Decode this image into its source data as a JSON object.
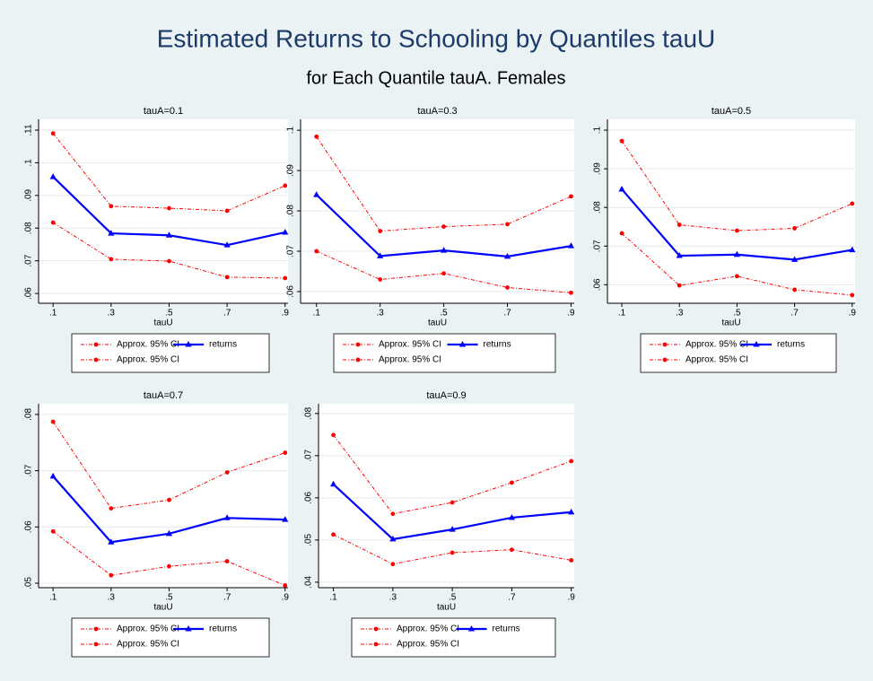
{
  "title": "Estimated Returns to Schooling by Quantiles tauU",
  "subtitle": "for Each Quantile tauA. Females",
  "chart_data": [
    {
      "type": "line",
      "title": "tauA=0.1",
      "xlabel": "tauU",
      "x": [
        0.1,
        0.3,
        0.5,
        0.7,
        0.9
      ],
      "xlim": [
        0.05,
        0.91
      ],
      "xticks": [
        {
          "value": 0.1,
          "label": ".1"
        },
        {
          "value": 0.3,
          "label": ".3"
        },
        {
          "value": 0.5,
          "label": ".5"
        },
        {
          "value": 0.7,
          "label": ".7"
        },
        {
          "value": 0.9,
          "label": ".9"
        }
      ],
      "ylim": [
        0.057,
        0.1133
      ],
      "yticks": [
        {
          "value": 0.06,
          "label": ".06"
        },
        {
          "value": 0.07,
          "label": ".07"
        },
        {
          "value": 0.08,
          "label": ".08"
        },
        {
          "value": 0.09,
          "label": ".09"
        },
        {
          "value": 0.1,
          "label": ".1"
        },
        {
          "value": 0.11,
          "label": ".11"
        }
      ],
      "grid": true,
      "series": [
        {
          "name": "Approx. 95% CI",
          "color": "#ff0000",
          "dashed": true,
          "marker": "circle",
          "values": [
            0.109,
            0.0867,
            0.0861,
            0.0853,
            0.093
          ]
        },
        {
          "name": "returns",
          "color": "#0000ff",
          "dashed": false,
          "marker": "triangle",
          "values": [
            0.0957,
            0.0784,
            0.0778,
            0.0748,
            0.0787
          ]
        },
        {
          "name": "Approx. 95% CI",
          "color": "#ff0000",
          "dashed": true,
          "marker": "circle",
          "values": [
            0.0817,
            0.0705,
            0.0699,
            0.065,
            0.0647
          ]
        }
      ]
    },
    {
      "type": "line",
      "title": "tauA=0.3",
      "xlabel": "tauU",
      "x": [
        0.1,
        0.3,
        0.5,
        0.7,
        0.9
      ],
      "xlim": [
        0.05,
        0.91
      ],
      "xticks": [
        {
          "value": 0.1,
          "label": ".1"
        },
        {
          "value": 0.3,
          "label": ".3"
        },
        {
          "value": 0.5,
          "label": ".5"
        },
        {
          "value": 0.7,
          "label": ".7"
        },
        {
          "value": 0.9,
          "label": ".9"
        }
      ],
      "ylim": [
        0.0571,
        0.1027
      ],
      "yticks": [
        {
          "value": 0.06,
          "label": ".06"
        },
        {
          "value": 0.07,
          "label": ".07"
        },
        {
          "value": 0.08,
          "label": ".08"
        },
        {
          "value": 0.09,
          "label": ".09"
        },
        {
          "value": 0.1,
          "label": ".1"
        }
      ],
      "grid": true,
      "series": [
        {
          "name": "Approx. 95% CI",
          "color": "#ff0000",
          "dashed": true,
          "marker": "circle",
          "values": [
            0.0984,
            0.075,
            0.0761,
            0.0767,
            0.0836
          ]
        },
        {
          "name": "returns",
          "color": "#0000ff",
          "dashed": false,
          "marker": "triangle",
          "values": [
            0.084,
            0.0688,
            0.0702,
            0.0687,
            0.0713
          ]
        },
        {
          "name": "Approx. 95% CI",
          "color": "#ff0000",
          "dashed": true,
          "marker": "circle",
          "values": [
            0.07,
            0.063,
            0.0645,
            0.061,
            0.0597
          ]
        }
      ]
    },
    {
      "type": "line",
      "title": "tauA=0.5",
      "xlabel": "tauU",
      "x": [
        0.1,
        0.3,
        0.5,
        0.7,
        0.9
      ],
      "xlim": [
        0.05,
        0.91
      ],
      "xticks": [
        {
          "value": 0.1,
          "label": ".1"
        },
        {
          "value": 0.3,
          "label": ".3"
        },
        {
          "value": 0.5,
          "label": ".5"
        },
        {
          "value": 0.7,
          "label": ".7"
        },
        {
          "value": 0.9,
          "label": ".9"
        }
      ],
      "ylim": [
        0.0552,
        0.1028
      ],
      "yticks": [
        {
          "value": 0.06,
          "label": ".06"
        },
        {
          "value": 0.07,
          "label": ".07"
        },
        {
          "value": 0.08,
          "label": ".08"
        },
        {
          "value": 0.09,
          "label": ".09"
        },
        {
          "value": 0.1,
          "label": ".1"
        }
      ],
      "grid": true,
      "series": [
        {
          "name": "Approx. 95% CI",
          "color": "#ff0000",
          "dashed": true,
          "marker": "circle",
          "values": [
            0.0972,
            0.0755,
            0.074,
            0.0746,
            0.081
          ]
        },
        {
          "name": "returns",
          "color": "#0000ff",
          "dashed": false,
          "marker": "triangle",
          "values": [
            0.0847,
            0.0675,
            0.0678,
            0.0665,
            0.069
          ]
        },
        {
          "name": "Approx. 95% CI",
          "color": "#ff0000",
          "dashed": true,
          "marker": "circle",
          "values": [
            0.0733,
            0.0598,
            0.0622,
            0.0587,
            0.0573
          ]
        }
      ]
    },
    {
      "type": "line",
      "title": "tauA=0.7",
      "xlabel": "tauU",
      "x": [
        0.1,
        0.3,
        0.5,
        0.7,
        0.9
      ],
      "xlim": [
        0.05,
        0.91
      ],
      "xticks": [
        {
          "value": 0.1,
          "label": ".1"
        },
        {
          "value": 0.3,
          "label": ".3"
        },
        {
          "value": 0.5,
          "label": ".5"
        },
        {
          "value": 0.7,
          "label": ".7"
        },
        {
          "value": 0.9,
          "label": ".9"
        }
      ],
      "ylim": [
        0.0492,
        0.0819
      ],
      "yticks": [
        {
          "value": 0.05,
          "label": ".05"
        },
        {
          "value": 0.06,
          "label": ".06"
        },
        {
          "value": 0.07,
          "label": ".07"
        },
        {
          "value": 0.08,
          "label": ".08"
        }
      ],
      "grid": true,
      "series": [
        {
          "name": "Approx. 95% CI",
          "color": "#ff0000",
          "dashed": true,
          "marker": "circle",
          "values": [
            0.0787,
            0.0633,
            0.0648,
            0.0697,
            0.0732
          ]
        },
        {
          "name": "returns",
          "color": "#0000ff",
          "dashed": false,
          "marker": "triangle",
          "values": [
            0.069,
            0.0573,
            0.0588,
            0.0616,
            0.0613
          ]
        },
        {
          "name": "Approx. 95% CI",
          "color": "#ff0000",
          "dashed": true,
          "marker": "circle",
          "values": [
            0.0592,
            0.0514,
            0.053,
            0.0539,
            0.0496
          ]
        }
      ]
    },
    {
      "type": "line",
      "title": "tauA=0.9",
      "xlabel": "tauU",
      "x": [
        0.1,
        0.3,
        0.5,
        0.7,
        0.9
      ],
      "xlim": [
        0.05,
        0.91
      ],
      "xticks": [
        {
          "value": 0.1,
          "label": ".1"
        },
        {
          "value": 0.3,
          "label": ".3"
        },
        {
          "value": 0.5,
          "label": ".5"
        },
        {
          "value": 0.7,
          "label": ".7"
        },
        {
          "value": 0.9,
          "label": ".9"
        }
      ],
      "ylim": [
        0.0387,
        0.0823
      ],
      "yticks": [
        {
          "value": 0.04,
          "label": ".04"
        },
        {
          "value": 0.05,
          "label": ".05"
        },
        {
          "value": 0.06,
          "label": ".06"
        },
        {
          "value": 0.07,
          "label": ".07"
        },
        {
          "value": 0.08,
          "label": ".08"
        }
      ],
      "grid": true,
      "series": [
        {
          "name": "Approx. 95% CI",
          "color": "#ff0000",
          "dashed": true,
          "marker": "circle",
          "values": [
            0.0749,
            0.0562,
            0.0589,
            0.0636,
            0.0687
          ]
        },
        {
          "name": "returns",
          "color": "#0000ff",
          "dashed": false,
          "marker": "triangle",
          "values": [
            0.0632,
            0.0502,
            0.0525,
            0.0553,
            0.0566
          ]
        },
        {
          "name": "Approx. 95% CI",
          "color": "#ff0000",
          "dashed": true,
          "marker": "circle",
          "values": [
            0.0513,
            0.0443,
            0.047,
            0.0477,
            0.0452
          ]
        }
      ]
    }
  ]
}
